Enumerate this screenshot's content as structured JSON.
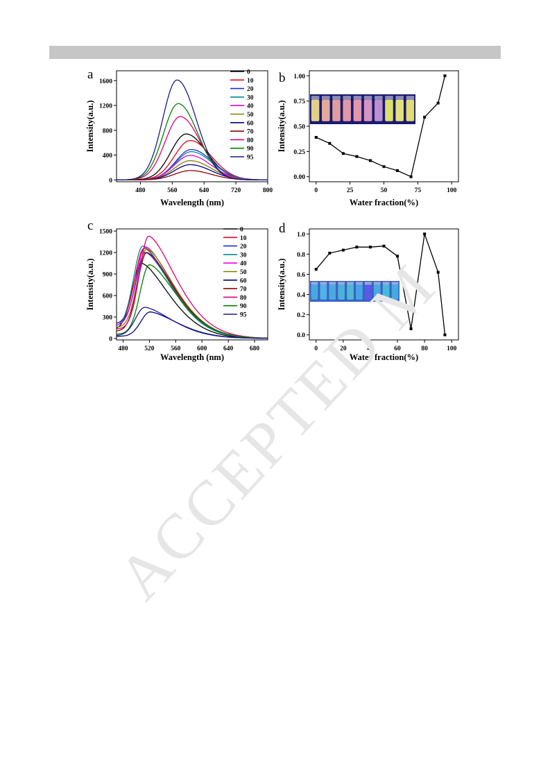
{
  "header": {
    "color": "#c6c6c6"
  },
  "watermark": {
    "text": "ACCEPTED M",
    "color": "#e3e3e3"
  },
  "chart_data": [
    {
      "panel_label": "a",
      "type": "line",
      "xlabel": "Wavelength (nm)",
      "ylabel": "Intensity(a.u.)",
      "xlim": [
        420,
        800
      ],
      "ylim": [
        -30,
        1760
      ],
      "xticks": [
        480,
        560,
        640,
        720,
        800
      ],
      "yticks": [
        0,
        400,
        800,
        1200,
        1600
      ],
      "legend_position": "top-right",
      "series": [
        {
          "name": "0",
          "color": "#000000",
          "peak_x": 595,
          "peak_y": 740,
          "width": 47
        },
        {
          "name": "10",
          "color": "#e8001c",
          "peak_x": 605,
          "peak_y": 635,
          "width": 48
        },
        {
          "name": "20",
          "color": "#1f2bd9",
          "peak_x": 608,
          "peak_y": 490,
          "width": 48
        },
        {
          "name": "30",
          "color": "#008b8b",
          "peak_x": 608,
          "peak_y": 455,
          "width": 48
        },
        {
          "name": "40",
          "color": "#e600e6",
          "peak_x": 605,
          "peak_y": 395,
          "width": 48
        },
        {
          "name": "50",
          "color": "#808000",
          "peak_x": 605,
          "peak_y": 310,
          "width": 48
        },
        {
          "name": "60",
          "color": "#000080",
          "peak_x": 605,
          "peak_y": 245,
          "width": 48
        },
        {
          "name": "70",
          "color": "#8b0000",
          "peak_x": 605,
          "peak_y": 150,
          "width": 48
        },
        {
          "name": "80",
          "color": "#d9007a",
          "peak_x": 580,
          "peak_y": 1020,
          "width": 46
        },
        {
          "name": "90",
          "color": "#008000",
          "peak_x": 575,
          "peak_y": 1230,
          "width": 45
        },
        {
          "name": "95",
          "color": "#1a1a8c",
          "peak_x": 572,
          "peak_y": 1610,
          "width": 44
        }
      ]
    },
    {
      "panel_label": "b",
      "type": "line",
      "xlabel": "Water fraction(%)",
      "ylabel": "Intensity(a.u.)",
      "xlim": [
        -5,
        105
      ],
      "ylim": [
        -0.05,
        1.05
      ],
      "xticks": [
        0,
        25,
        50,
        75,
        100
      ],
      "yticks": [
        0.0,
        0.25,
        0.5,
        0.75,
        1.0
      ],
      "ytick_labels": [
        "0.00",
        "0.25",
        "0.50",
        "0.75",
        "1.00"
      ],
      "x": [
        0,
        10,
        20,
        30,
        40,
        50,
        60,
        70,
        80,
        90,
        95
      ],
      "y": [
        0.39,
        0.33,
        0.23,
        0.2,
        0.16,
        0.1,
        0.06,
        0.0,
        0.59,
        0.73,
        1.0
      ],
      "inset": {
        "type": "photo",
        "description_colors": [
          "#f2e08a",
          "#f4b6a0",
          "#f0a9a0",
          "#f2a2a8",
          "#f0a2b0",
          "#e6a0c8",
          "#c89ad8",
          "#eef06a",
          "#f4f080",
          "#f2ec72"
        ]
      }
    },
    {
      "panel_label": "c",
      "type": "line",
      "xlabel": "Wavelength (nm)",
      "ylabel": "Intensity(a.u.)",
      "xlim": [
        470,
        700
      ],
      "ylim": [
        -20,
        1530
      ],
      "xticks": [
        480,
        520,
        560,
        600,
        640,
        680
      ],
      "yticks": [
        0,
        300,
        600,
        900,
        1200,
        1500
      ],
      "legend_position": "top-right",
      "series": [
        {
          "name": "0",
          "color": "#000000",
          "peak_x": 508,
          "peak_y": 1050,
          "base": 120
        },
        {
          "name": "10",
          "color": "#e8001c",
          "peak_x": 512,
          "peak_y": 1260,
          "base": 200
        },
        {
          "name": "20",
          "color": "#1f2bd9",
          "peak_x": 514,
          "peak_y": 1200,
          "base": 210
        },
        {
          "name": "30",
          "color": "#008b8b",
          "peak_x": 510,
          "peak_y": 1290,
          "base": 160
        },
        {
          "name": "40",
          "color": "#e600e6",
          "peak_x": 514,
          "peak_y": 1280,
          "base": 180
        },
        {
          "name": "50",
          "color": "#808000",
          "peak_x": 516,
          "peak_y": 1250,
          "base": 150
        },
        {
          "name": "60",
          "color": "#000080",
          "peak_x": 521,
          "peak_y": 370,
          "base": 30
        },
        {
          "name": "70",
          "color": "#8b0000",
          "peak_x": 516,
          "peak_y": 1200,
          "base": 100
        },
        {
          "name": "80",
          "color": "#d9007a",
          "peak_x": 519,
          "peak_y": 1430,
          "base": 130
        },
        {
          "name": "90",
          "color": "#008000",
          "peak_x": 520,
          "peak_y": 1030,
          "base": 60
        },
        {
          "name": "95",
          "color": "#1a1a8c",
          "peak_x": 513,
          "peak_y": 435,
          "base": 40
        }
      ]
    },
    {
      "panel_label": "d",
      "type": "line",
      "xlabel": "Water fraction(%)",
      "ylabel": "Intensity(a.u.)",
      "xlim": [
        -5,
        105
      ],
      "ylim": [
        -0.05,
        1.05
      ],
      "xticks": [
        0,
        20,
        40,
        60,
        80,
        100
      ],
      "yticks": [
        0.0,
        0.2,
        0.4,
        0.6,
        0.8,
        1.0
      ],
      "ytick_labels": [
        "0.0",
        "0.2",
        "0.4",
        "0.6",
        "0.8",
        "1.0"
      ],
      "x": [
        0,
        10,
        20,
        30,
        40,
        50,
        60,
        70,
        80,
        90,
        95
      ],
      "y": [
        0.65,
        0.81,
        0.84,
        0.87,
        0.87,
        0.88,
        0.78,
        0.06,
        1.0,
        0.62,
        0.0
      ],
      "inset": {
        "type": "photo",
        "description_colors": [
          "#48b0e0",
          "#52b8e8",
          "#4cb0e0",
          "#4ab8d8",
          "#50c0d0",
          "#48a8e8",
          "#5a5ae8",
          "#4ab0e0",
          "#48c0d8",
          "#46b0e0"
        ]
      }
    }
  ]
}
